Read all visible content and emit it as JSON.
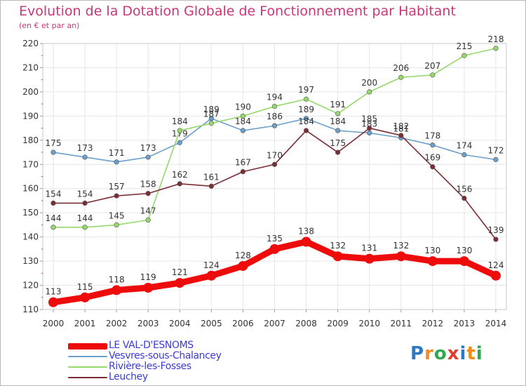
{
  "chart_data": {
    "type": "line",
    "title": "Evolution de la Dotation Globale de Fonctionnement par Habitant",
    "subtitle": "(en € et par an)",
    "x": [
      "2000",
      "2001",
      "2002",
      "2003",
      "2004",
      "2005",
      "2006",
      "2007",
      "2008",
      "2009",
      "2010",
      "2011",
      "2012",
      "2013",
      "2014"
    ],
    "ylim": [
      110,
      220
    ],
    "yticks": [
      110,
      120,
      130,
      140,
      150,
      160,
      170,
      180,
      190,
      200,
      210,
      220
    ],
    "grid": true,
    "legend_position": "bottom-left",
    "series": [
      {
        "name": "Vesvres-sous-Chalancey",
        "color": "#6c9fc9",
        "values": [
          175,
          173,
          171,
          173,
          179,
          189,
          184,
          186,
          189,
          184,
          183,
          181,
          178,
          174,
          172
        ],
        "labels": [
          "175",
          "173",
          "171",
          "173",
          "179",
          "189",
          "184",
          "186",
          "189",
          "184",
          "183",
          "181",
          "178",
          "174",
          "172"
        ]
      },
      {
        "name": "Rivière-les-Fosses",
        "color": "#96d86b",
        "values": [
          144,
          144,
          145,
          147,
          184,
          187,
          190,
          194,
          197,
          191,
          200,
          206,
          207,
          215,
          218
        ],
        "labels": [
          "144",
          "144",
          "145",
          "147",
          "184",
          "187",
          "190",
          "194",
          "197",
          "191",
          "200",
          "206",
          "207",
          "215",
          "218"
        ]
      },
      {
        "name": "Leuchey",
        "color": "#7a2d35",
        "values": [
          154,
          154,
          157,
          158,
          162,
          161,
          167,
          170,
          184,
          175,
          185,
          182,
          169,
          156,
          139
        ],
        "labels": [
          "154",
          "154",
          "157",
          "158",
          "162",
          "161",
          "167",
          "170",
          "184",
          "175",
          "185",
          "182",
          "169",
          "156",
          "139"
        ]
      },
      {
        "name": "LE VAL-D'ESNOMS",
        "color": "#ee0b0b",
        "values": [
          113,
          115,
          118,
          119,
          121,
          124,
          128,
          135,
          138,
          132,
          131,
          132,
          130,
          130,
          124
        ],
        "labels": [
          "113",
          "115",
          "118",
          "119",
          "121",
          "124",
          "128",
          "135",
          "138",
          "132",
          "131",
          "132",
          "130",
          "130",
          "124"
        ]
      }
    ]
  },
  "legend": {
    "items": [
      {
        "label": "LE VAL-D'ESNOMS",
        "color": "#ee0b0b",
        "text_color": "#3c3cd4"
      },
      {
        "label": "Vesvres-sous-Chalancey",
        "color": "#6c9fc9",
        "text_color": "#3c3cd4"
      },
      {
        "label": "Rivière-les-Fosses",
        "color": "#96d86b",
        "text_color": "#3c3cd4"
      },
      {
        "label": "Leuchey",
        "color": "#7a2d35",
        "text_color": "#3c3cd4"
      }
    ]
  },
  "logo": {
    "letters": [
      "P",
      "r",
      "o",
      "x",
      "i",
      "t",
      "i"
    ],
    "colors": [
      "#2b7ac2",
      "#f28c1e",
      "#2fa84f",
      "#e33b2e",
      "#2b7ac2",
      "#f28c1e",
      "#2fa84f"
    ]
  }
}
